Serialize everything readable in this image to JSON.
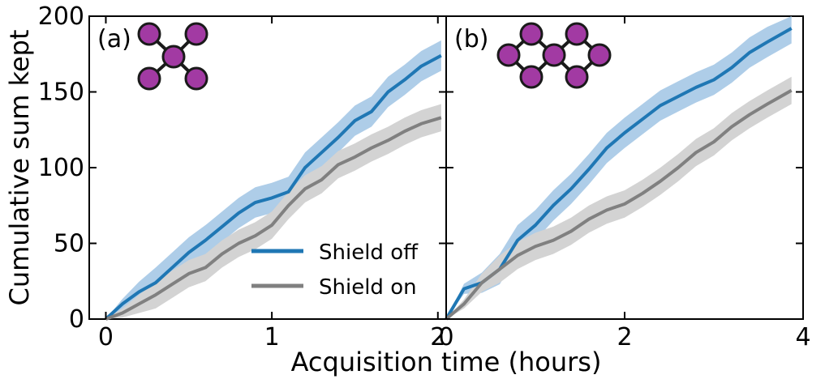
{
  "chart_data": {
    "type": "line",
    "ylabel": "Cumulative sum kept",
    "xlabel": "Acquisition time (hours)",
    "yticks": [
      "0",
      "50",
      "100",
      "150",
      "200"
    ],
    "ylim": [
      0,
      200
    ],
    "legend": {
      "position": "bottom-right of panel (a)",
      "entries": [
        {
          "name": "Shield off",
          "color": "#1f77b4"
        },
        {
          "name": "Shield on",
          "color": "#808080"
        }
      ]
    },
    "colors": {
      "off_line": "#1f77b4",
      "off_band": "#aecde8",
      "on_line": "#808080",
      "on_band": "#d3d3d3",
      "node": "#a23aa3",
      "node_edge": "#1a1a1a"
    },
    "panels": [
      {
        "label": "(a)",
        "inset": "5-node star (cross) graph",
        "xlim": [
          -0.1,
          2.05
        ],
        "xticks": [
          "0",
          "1",
          "2"
        ],
        "xtick_values": [
          0,
          1,
          2
        ],
        "series": [
          {
            "name": "Shield off",
            "x": [
              0,
              0.1,
              0.2,
              0.3,
              0.4,
              0.5,
              0.6,
              0.7,
              0.8,
              0.9,
              1.0,
              1.1,
              1.2,
              1.3,
              1.4,
              1.5,
              1.6,
              1.7,
              1.8,
              1.9,
              2.02
            ],
            "y": [
              0,
              10,
              18,
              24,
              34,
              44,
              52,
              61,
              70,
              77,
              80,
              84,
              100,
              110,
              120,
              131,
              137,
              150,
              158,
              167,
              174
            ],
            "band": 10
          },
          {
            "name": "Shield on",
            "x": [
              0,
              0.1,
              0.2,
              0.3,
              0.4,
              0.5,
              0.6,
              0.7,
              0.8,
              0.9,
              1.0,
              1.1,
              1.2,
              1.3,
              1.4,
              1.5,
              1.6,
              1.7,
              1.8,
              1.9,
              2.02
            ],
            "y": [
              0,
              4,
              10,
              16,
              23,
              30,
              34,
              43,
              50,
              55,
              62,
              75,
              86,
              92,
              102,
              107,
              113,
              118,
              124,
              129,
              133
            ],
            "band": 9
          }
        ]
      },
      {
        "label": "(b)",
        "inset": "ladder graph with two rings",
        "xlim": [
          0,
          4.0
        ],
        "xticks": [
          "0",
          "2",
          "4"
        ],
        "xtick_values": [
          0,
          2,
          4
        ],
        "series": [
          {
            "name": "Shield off",
            "x": [
              0,
              0.2,
              0.4,
              0.6,
              0.8,
              1.0,
              1.2,
              1.4,
              1.6,
              1.8,
              2.0,
              2.2,
              2.4,
              2.6,
              2.8,
              3.0,
              3.2,
              3.4,
              3.6,
              3.87
            ],
            "y": [
              0,
              20,
              24,
              33,
              52,
              62,
              75,
              86,
              99,
              113,
              123,
              132,
              141,
              147,
              153,
              158,
              166,
              176,
              183,
              192
            ],
            "band": 10
          },
          {
            "name": "Shield on",
            "x": [
              0,
              0.2,
              0.4,
              0.6,
              0.8,
              1.0,
              1.2,
              1.4,
              1.6,
              1.8,
              2.0,
              2.2,
              2.4,
              2.6,
              2.8,
              3.0,
              3.2,
              3.4,
              3.6,
              3.87
            ],
            "y": [
              0,
              10,
              24,
              33,
              42,
              48,
              52,
              58,
              66,
              72,
              76,
              83,
              91,
              100,
              110,
              117,
              127,
              135,
              142,
              151
            ],
            "band": 9
          }
        ]
      }
    ]
  }
}
